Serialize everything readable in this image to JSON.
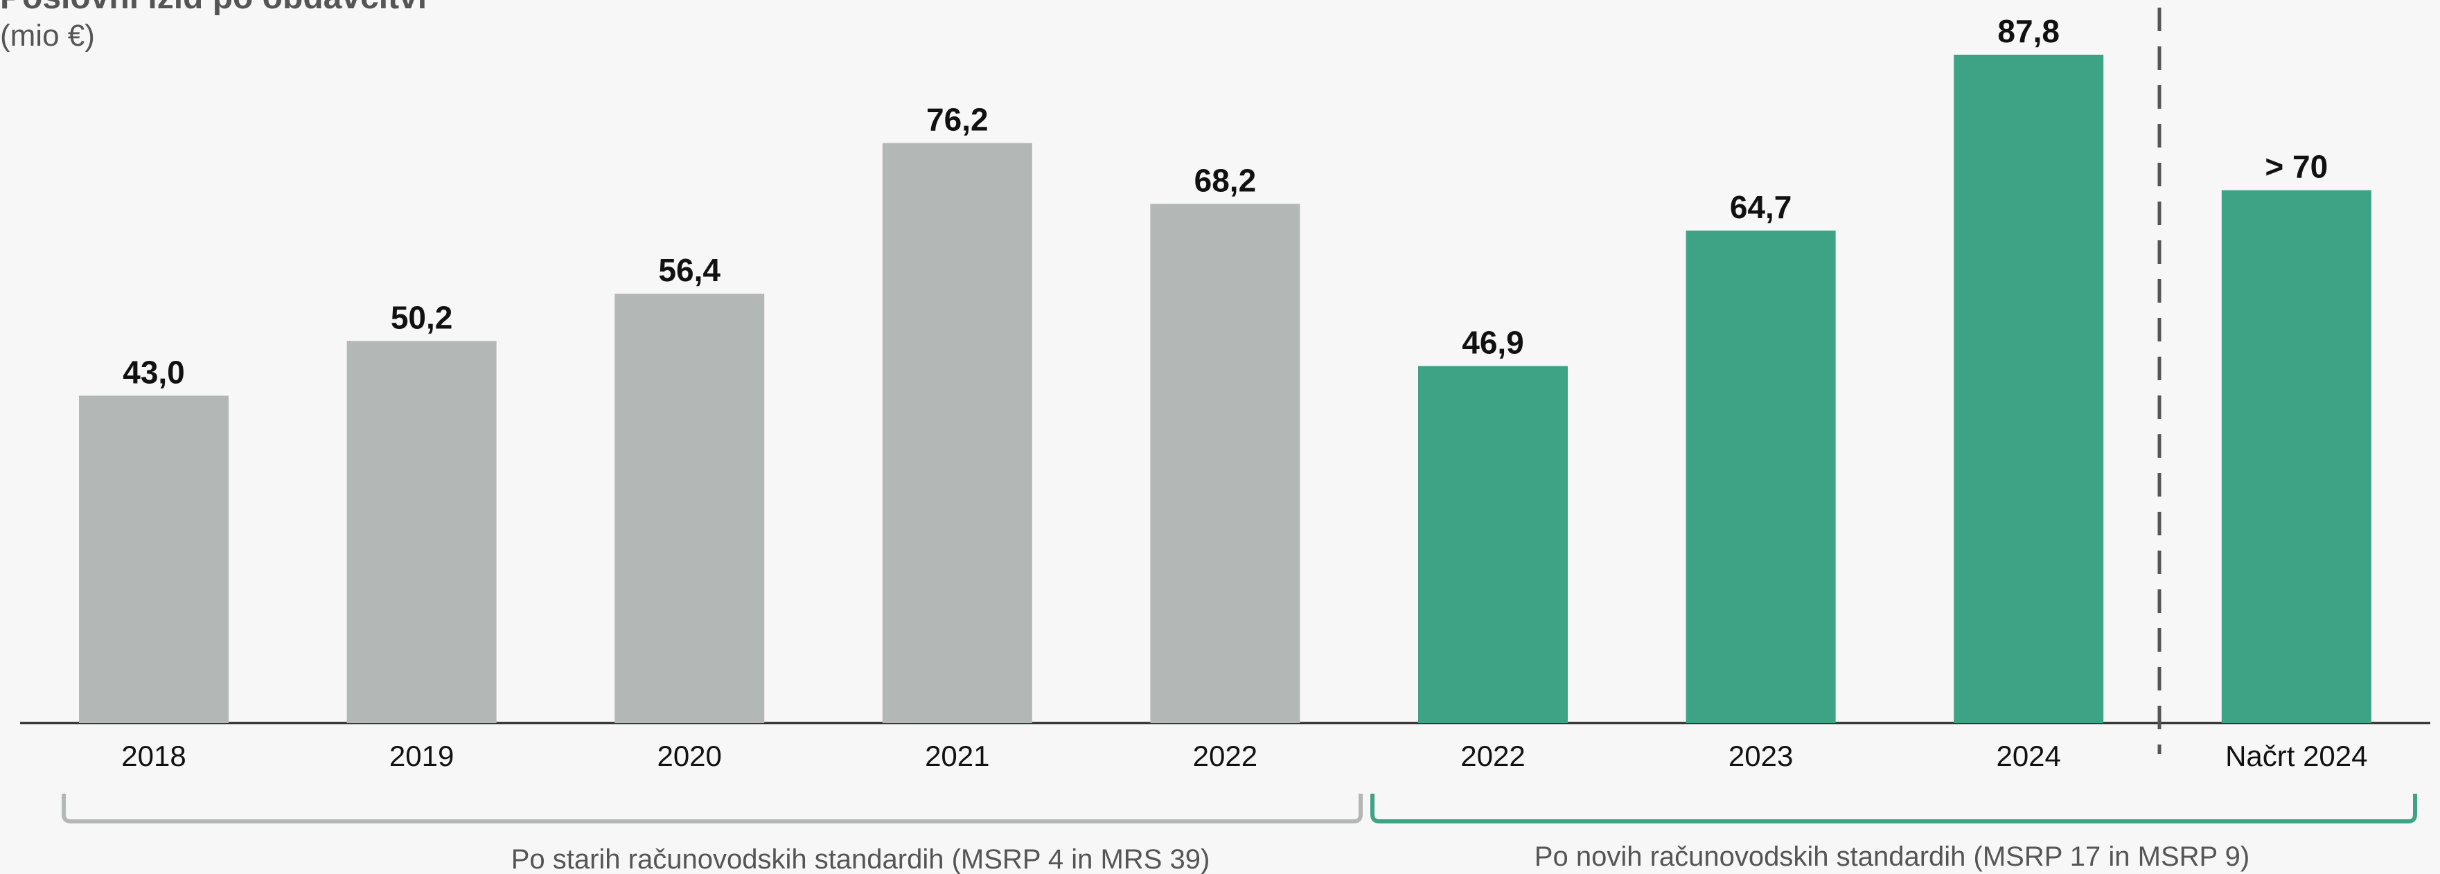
{
  "chart_data": {
    "type": "bar",
    "title": "Poslovni izid po obdavčitvi",
    "subtitle": "(mio €)",
    "categories": [
      "2018",
      "2019",
      "2020",
      "2021",
      "2022",
      "2022",
      "2023",
      "2024",
      "Načrt 2024"
    ],
    "values": [
      43.0,
      50.2,
      56.4,
      76.2,
      68.2,
      46.9,
      64.7,
      87.8,
      70
    ],
    "value_labels": [
      "43,0",
      "50,2",
      "56,4",
      "76,2",
      "68,2",
      "46,9",
      "64,7",
      "87,8",
      "> 70"
    ],
    "colors": [
      "#b3b8b6",
      "#b3b8b6",
      "#b3b8b6",
      "#b3b8b6",
      "#b3b8b6",
      "#3ea385",
      "#3ea385",
      "#3ea385",
      "#3ea385"
    ],
    "groups": [
      "Po starih računovodskih standardih (MSRP 4 in MRS 39)",
      "Po novih računovodskih standardih (MSRP 17 in MSRP 9)"
    ]
  }
}
